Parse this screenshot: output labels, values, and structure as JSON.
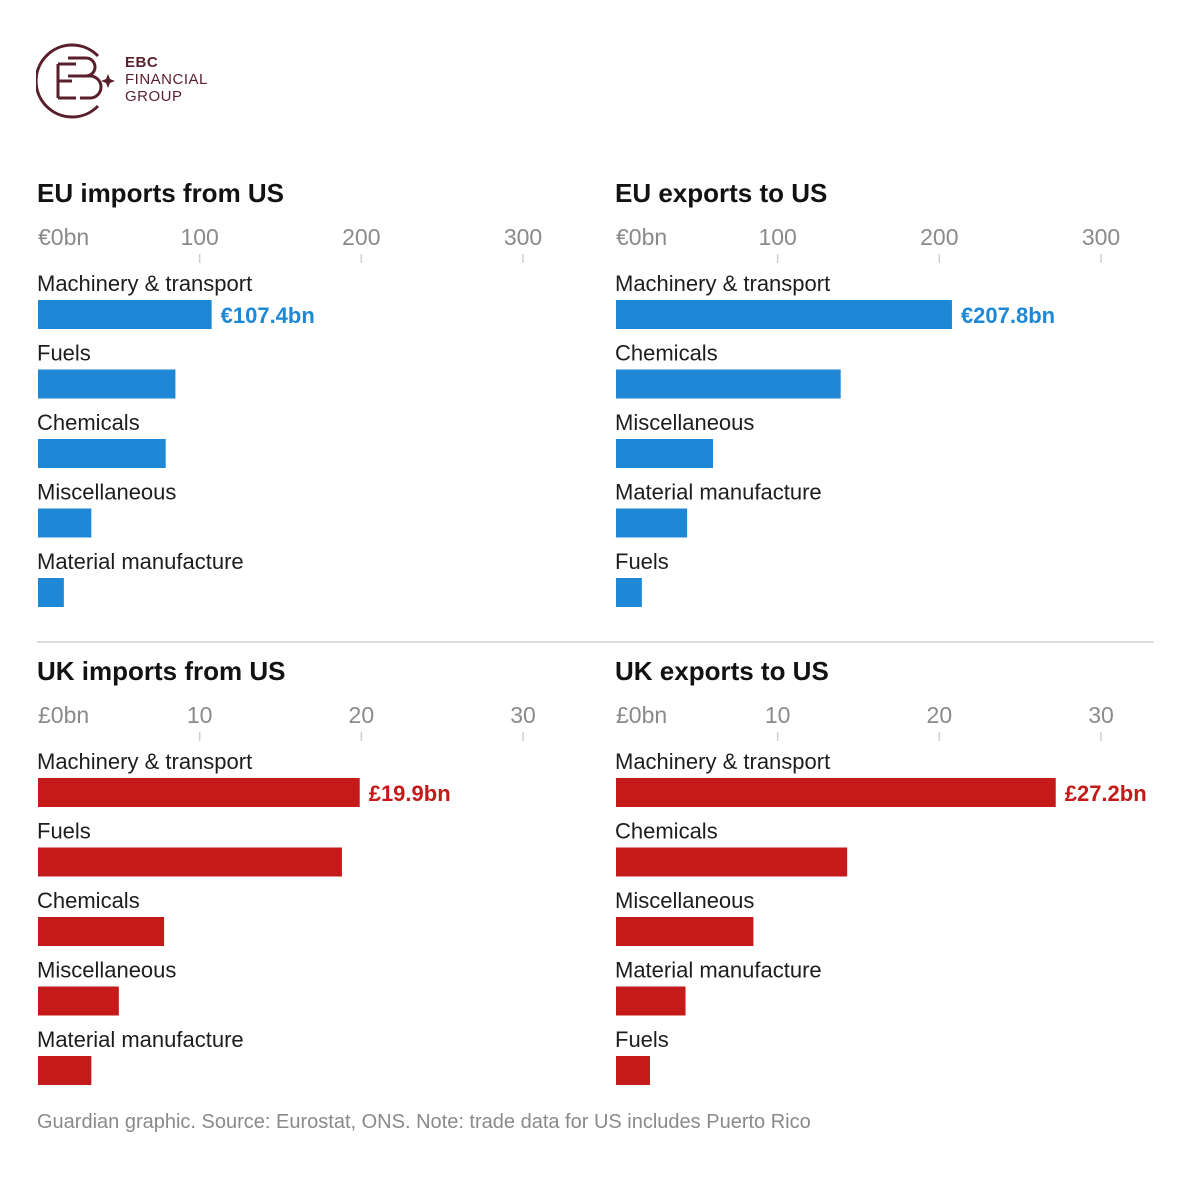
{
  "logo": {
    "line1": "EBC",
    "line2": "FINANCIAL",
    "line3": "GROUP"
  },
  "colors": {
    "eu": "#1e88d6",
    "uk": "#c41a1a",
    "brand": "#5a1f2c"
  },
  "chart_data": [
    {
      "type": "bar",
      "orientation": "horizontal",
      "title": "EU imports from US",
      "tick_labels": [
        "€0bn",
        "100",
        "200",
        "300"
      ],
      "xlim": [
        0,
        300
      ],
      "categories": [
        "Machinery & transport",
        "Fuels",
        "Chemicals",
        "Miscellaneous",
        "Material manufacture"
      ],
      "values": [
        107.4,
        85,
        79,
        33,
        16
      ],
      "value_label": "€107.4bn",
      "color": "#1e88d6"
    },
    {
      "type": "bar",
      "orientation": "horizontal",
      "title": "EU exports to US",
      "tick_labels": [
        "€0bn",
        "100",
        "200",
        "300"
      ],
      "xlim": [
        0,
        300
      ],
      "categories": [
        "Machinery & transport",
        "Chemicals",
        "Miscellaneous",
        "Material manufacture",
        "Fuels"
      ],
      "values": [
        207.8,
        139,
        60,
        44,
        16
      ],
      "value_label": "€207.8bn",
      "color": "#1e88d6"
    },
    {
      "type": "bar",
      "orientation": "horizontal",
      "title": "UK imports from US",
      "tick_labels": [
        "£0bn",
        "10",
        "20",
        "30"
      ],
      "xlim": [
        0,
        30
      ],
      "categories": [
        "Machinery & transport",
        "Fuels",
        "Chemicals",
        "Miscellaneous",
        "Material manufacture"
      ],
      "values": [
        19.9,
        18.8,
        7.8,
        5.0,
        3.3
      ],
      "value_label": "£19.9bn",
      "color": "#c41a1a"
    },
    {
      "type": "bar",
      "orientation": "horizontal",
      "title": "UK exports to US",
      "tick_labels": [
        "£0bn",
        "10",
        "20",
        "30"
      ],
      "xlim": [
        0,
        30
      ],
      "categories": [
        "Machinery & transport",
        "Chemicals",
        "Miscellaneous",
        "Material manufacture",
        "Fuels"
      ],
      "values": [
        27.2,
        14.3,
        8.5,
        4.3,
        2.1
      ],
      "value_label": "£27.2bn",
      "color": "#c41a1a"
    }
  ],
  "footer": "Guardian graphic. Source: Eurostat, ONS. Note: trade data for US includes Puerto Rico"
}
